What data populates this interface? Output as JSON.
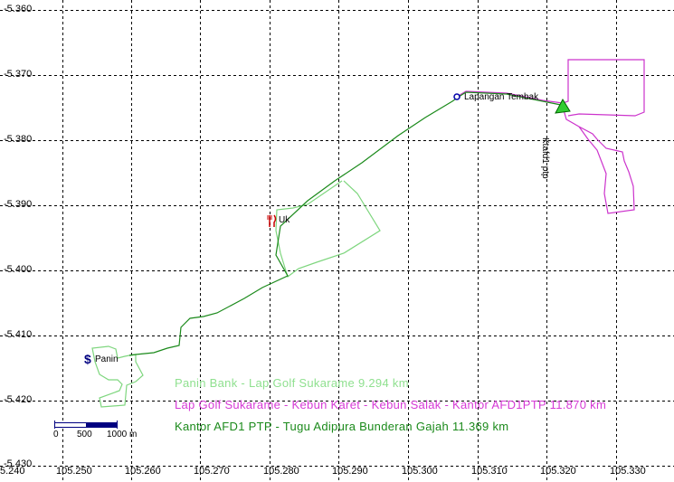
{
  "map": {
    "y_ticks": [
      "-5.360",
      "-5.370",
      "-5.380",
      "-5.390",
      "-5.400",
      "-5.410",
      "-5.420",
      "-5.430"
    ],
    "x_ticks": [
      "5.240",
      "105.250",
      "105.260",
      "105.270",
      "105.280",
      "105.290",
      "105.300",
      "105.310",
      "105.320",
      "105.330"
    ],
    "pois": {
      "panin": "Panin",
      "uk": "Uk",
      "lapangan": "Lapangan Tembak",
      "kantor": "Ktafd1 ptp"
    },
    "legend": [
      {
        "text": "Panin Bank - Lap Golf Sukarame 9.294 km",
        "color": "#8fe08f"
      },
      {
        "text": "Lap Golf Sukarame - Kebun Karet - Kebun Salak  - Kantor AFD1PTP 11.870 km",
        "color": "#d63ad6"
      },
      {
        "text": "Kantor AFD1 PTP - Tugu Adipura Bunderan Gajah  11.369 km",
        "color": "#1b8a1b"
      }
    ],
    "scale": {
      "l0": "0",
      "l1": "500",
      "l2": "1000 m"
    },
    "colors": {
      "grid": "#000000",
      "route_light": "#7ed67e",
      "route_magenta": "#cc33cc",
      "route_dark": "#1b8a1b"
    }
  }
}
